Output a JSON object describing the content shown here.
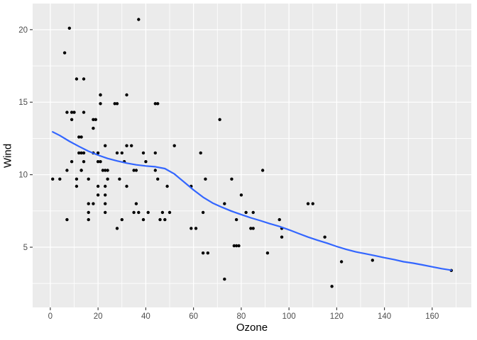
{
  "chart_data": {
    "type": "scatter",
    "title": "",
    "xlabel": "Ozone",
    "ylabel": "Wind",
    "xlim": [
      -7.4,
      176.4
    ],
    "ylim": [
      0.85,
      21.8
    ],
    "x_ticks": [
      0,
      20,
      40,
      60,
      80,
      100,
      120,
      140,
      160
    ],
    "y_ticks": [
      5,
      10,
      15,
      20
    ],
    "x_minor": [
      10,
      30,
      50,
      70,
      90,
      110,
      130,
      150,
      170
    ],
    "y_minor": [
      2.5,
      7.5,
      12.5,
      17.5
    ],
    "grid": "on",
    "legend": "none",
    "points": [
      [
        41,
        7.4
      ],
      [
        36,
        8.0
      ],
      [
        12,
        12.6
      ],
      [
        18,
        11.5
      ],
      [
        28,
        14.9
      ],
      [
        23,
        8.6
      ],
      [
        19,
        13.8
      ],
      [
        8,
        20.1
      ],
      [
        7,
        6.9
      ],
      [
        16,
        9.7
      ],
      [
        11,
        9.2
      ],
      [
        14,
        10.9
      ],
      [
        18,
        13.2
      ],
      [
        14,
        11.5
      ],
      [
        34,
        12.0
      ],
      [
        6,
        18.4
      ],
      [
        30,
        11.5
      ],
      [
        11,
        9.7
      ],
      [
        1,
        9.7
      ],
      [
        11,
        16.6
      ],
      [
        4,
        9.7
      ],
      [
        32,
        12.0
      ],
      [
        23,
        12.0
      ],
      [
        45,
        14.9
      ],
      [
        115,
        5.7
      ],
      [
        37,
        7.4
      ],
      [
        29,
        9.7
      ],
      [
        71,
        13.8
      ],
      [
        39,
        11.5
      ],
      [
        23,
        8.0
      ],
      [
        21,
        14.9
      ],
      [
        37,
        20.7
      ],
      [
        20,
        9.2
      ],
      [
        12,
        11.5
      ],
      [
        13,
        10.3
      ],
      [
        135,
        4.1
      ],
      [
        49,
        9.2
      ],
      [
        32,
        9.2
      ],
      [
        64,
        4.6
      ],
      [
        40,
        10.9
      ],
      [
        77,
        5.1
      ],
      [
        97,
        6.3
      ],
      [
        97,
        5.7
      ],
      [
        85,
        7.4
      ],
      [
        10,
        14.3
      ],
      [
        27,
        14.9
      ],
      [
        7,
        14.3
      ],
      [
        48,
        6.9
      ],
      [
        35,
        10.3
      ],
      [
        61,
        6.3
      ],
      [
        79,
        5.1
      ],
      [
        63,
        11.5
      ],
      [
        16,
        6.9
      ],
      [
        80,
        8.6
      ],
      [
        108,
        8.0
      ],
      [
        20,
        8.6
      ],
      [
        52,
        12.0
      ],
      [
        82,
        7.4
      ],
      [
        50,
        7.4
      ],
      [
        64,
        7.4
      ],
      [
        59,
        9.2
      ],
      [
        39,
        6.9
      ],
      [
        9,
        13.8
      ],
      [
        16,
        7.4
      ],
      [
        78,
        6.9
      ],
      [
        35,
        7.4
      ],
      [
        66,
        4.6
      ],
      [
        122,
        4.0
      ],
      [
        89,
        10.3
      ],
      [
        110,
        8.0
      ],
      [
        44,
        11.5
      ],
      [
        28,
        11.5
      ],
      [
        65,
        9.7
      ],
      [
        22,
        10.3
      ],
      [
        59,
        6.3
      ],
      [
        23,
        7.4
      ],
      [
        31,
        10.9
      ],
      [
        44,
        10.3
      ],
      [
        21,
        15.5
      ],
      [
        9,
        14.3
      ],
      [
        45,
        9.7
      ],
      [
        168,
        3.4
      ],
      [
        73,
        8.0
      ],
      [
        76,
        9.7
      ],
      [
        118,
        2.3
      ],
      [
        84,
        6.3
      ],
      [
        85,
        6.3
      ],
      [
        96,
        6.9
      ],
      [
        78,
        5.1
      ],
      [
        73,
        2.8
      ],
      [
        91,
        4.6
      ],
      [
        47,
        7.4
      ],
      [
        32,
        15.5
      ],
      [
        20,
        10.9
      ],
      [
        23,
        10.3
      ],
      [
        21,
        10.9
      ],
      [
        24,
        9.7
      ],
      [
        44,
        14.9
      ],
      [
        21,
        15.5
      ],
      [
        28,
        6.3
      ],
      [
        9,
        10.9
      ],
      [
        13,
        11.5
      ],
      [
        46,
        6.9
      ],
      [
        18,
        13.8
      ],
      [
        13,
        10.3
      ],
      [
        24,
        10.3
      ],
      [
        16,
        8.0
      ],
      [
        13,
        12.6
      ],
      [
        23,
        9.2
      ],
      [
        36,
        10.3
      ],
      [
        7,
        10.3
      ],
      [
        14,
        16.6
      ],
      [
        30,
        6.9
      ],
      [
        14,
        14.3
      ],
      [
        18,
        8.0
      ],
      [
        20,
        11.5
      ]
    ],
    "smooth_line": {
      "name": "loess-smooth",
      "points": [
        [
          1,
          12.95
        ],
        [
          4,
          12.7
        ],
        [
          8,
          12.3
        ],
        [
          12,
          11.95
        ],
        [
          16,
          11.62
        ],
        [
          20,
          11.35
        ],
        [
          24,
          11.12
        ],
        [
          28,
          10.95
        ],
        [
          32,
          10.8
        ],
        [
          36,
          10.68
        ],
        [
          40,
          10.6
        ],
        [
          44,
          10.55
        ],
        [
          48,
          10.42
        ],
        [
          52,
          10.05
        ],
        [
          56,
          9.5
        ],
        [
          60,
          8.95
        ],
        [
          64,
          8.45
        ],
        [
          68,
          8.05
        ],
        [
          72,
          7.75
        ],
        [
          76,
          7.48
        ],
        [
          80,
          7.25
        ],
        [
          84,
          7.03
        ],
        [
          88,
          6.83
        ],
        [
          92,
          6.62
        ],
        [
          96,
          6.43
        ],
        [
          100,
          6.2
        ],
        [
          104,
          5.95
        ],
        [
          108,
          5.7
        ],
        [
          112,
          5.48
        ],
        [
          116,
          5.28
        ],
        [
          120,
          5.05
        ],
        [
          124,
          4.85
        ],
        [
          128,
          4.68
        ],
        [
          132,
          4.55
        ],
        [
          136,
          4.42
        ],
        [
          140,
          4.28
        ],
        [
          144,
          4.15
        ],
        [
          148,
          4.0
        ],
        [
          152,
          3.9
        ],
        [
          156,
          3.78
        ],
        [
          160,
          3.65
        ],
        [
          164,
          3.52
        ],
        [
          168,
          3.42
        ]
      ]
    },
    "colors": {
      "background": "#FFFFFF",
      "panel": "#EBEBEB",
      "grid_major": "#FFFFFF",
      "grid_minor": "#FFFFFF",
      "point": "#000000",
      "smooth": "#3366FF",
      "axis_text": "#4D4D4D",
      "axis_title": "#000000",
      "tick_mark": "#333333"
    },
    "layout": {
      "panel_left": 46,
      "panel_top": 5,
      "panel_right": 664,
      "panel_bottom": 434,
      "point_radius": 2.2,
      "smooth_width": 2.2
    }
  }
}
